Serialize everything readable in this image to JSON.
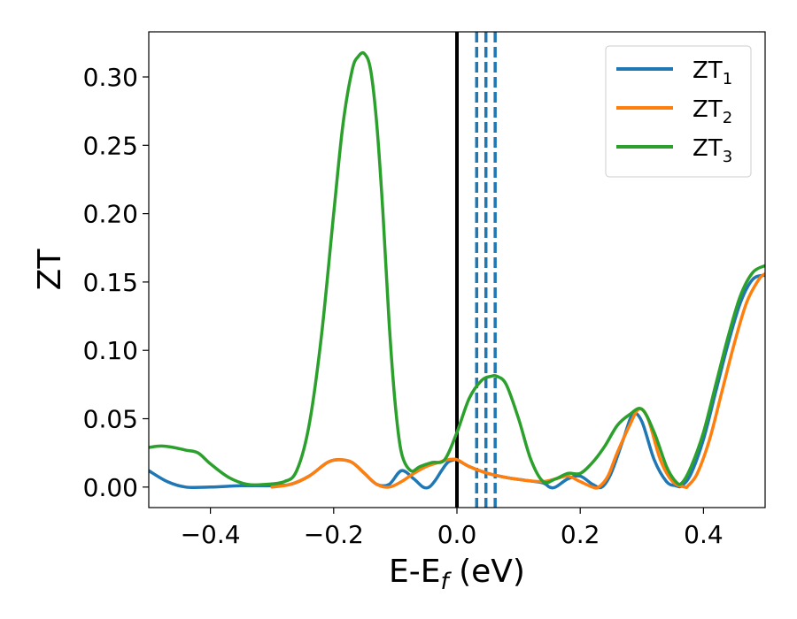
{
  "chart_data": {
    "type": "line",
    "xlabel": "E-E",
    "xlabel_sub": "f",
    "xlabel_unit": " (eV)",
    "ylabel": "ZT",
    "xlim": [
      -0.5,
      0.5
    ],
    "ylim": [
      -0.015,
      0.333
    ],
    "xticks": [
      -0.4,
      -0.2,
      0.0,
      0.2,
      0.4
    ],
    "xtick_labels": [
      "−0.4",
      "−0.2",
      "0.0",
      "0.2",
      "0.4"
    ],
    "yticks": [
      0.0,
      0.05,
      0.1,
      0.15,
      0.2,
      0.25,
      0.3
    ],
    "ytick_labels": [
      "0.00",
      "0.05",
      "0.10",
      "0.15",
      "0.20",
      "0.25",
      "0.30"
    ],
    "grid": false,
    "legend_position": "top-right",
    "vertical_lines": [
      {
        "x": 0.0,
        "style": "solid",
        "color": "#000000"
      },
      {
        "x": 0.032,
        "style": "dashed",
        "color": "#1f77b4"
      },
      {
        "x": 0.047,
        "style": "dashed",
        "color": "#1f77b4"
      },
      {
        "x": 0.062,
        "style": "dashed",
        "color": "#1f77b4"
      }
    ],
    "series": [
      {
        "name": "ZT",
        "name_sub": "1",
        "color": "#1f77b4",
        "x": [
          -0.5,
          -0.47,
          -0.44,
          -0.4,
          -0.35,
          -0.3,
          -0.27,
          -0.24,
          -0.21,
          -0.19,
          -0.17,
          -0.15,
          -0.13,
          -0.11,
          -0.09,
          -0.07,
          -0.055,
          -0.045,
          -0.035,
          -0.025,
          -0.015,
          -0.005,
          0.0,
          0.02,
          0.05,
          0.08,
          0.11,
          0.14,
          0.15,
          0.16,
          0.18,
          0.2,
          0.22,
          0.235,
          0.25,
          0.27,
          0.285,
          0.3,
          0.32,
          0.34,
          0.355,
          0.365,
          0.38,
          0.4,
          0.42,
          0.44,
          0.46,
          0.48,
          0.5
        ],
        "y": [
          0.012,
          0.004,
          0.0,
          0.0,
          0.001,
          0.001,
          0.002,
          0.008,
          0.018,
          0.02,
          0.018,
          0.01,
          0.002,
          0.002,
          0.012,
          0.006,
          0.0,
          0.0,
          0.005,
          0.012,
          0.018,
          0.02,
          0.02,
          0.015,
          0.01,
          0.007,
          0.005,
          0.003,
          0.0,
          0.0,
          0.006,
          0.008,
          0.002,
          0.0,
          0.01,
          0.035,
          0.053,
          0.048,
          0.02,
          0.004,
          0.001,
          0.001,
          0.01,
          0.035,
          0.07,
          0.105,
          0.135,
          0.152,
          0.155
        ]
      },
      {
        "name": "ZT",
        "name_sub": "2",
        "color": "#ff7f0e",
        "x": [
          -0.3,
          -0.27,
          -0.24,
          -0.21,
          -0.19,
          -0.17,
          -0.15,
          -0.13,
          -0.11,
          -0.09,
          -0.07,
          -0.05,
          -0.03,
          -0.015,
          0.0,
          0.02,
          0.05,
          0.08,
          0.11,
          0.14,
          0.16,
          0.18,
          0.2,
          0.22,
          0.23,
          0.245,
          0.26,
          0.28,
          0.295,
          0.31,
          0.33,
          0.35,
          0.37,
          0.375,
          0.39,
          0.41,
          0.43,
          0.45,
          0.47,
          0.49,
          0.5
        ],
        "y": [
          0.0,
          0.002,
          0.008,
          0.018,
          0.02,
          0.018,
          0.01,
          0.002,
          0.0,
          0.004,
          0.01,
          0.015,
          0.018,
          0.02,
          0.02,
          0.015,
          0.01,
          0.007,
          0.005,
          0.004,
          0.006,
          0.008,
          0.004,
          0.0,
          0.0,
          0.008,
          0.025,
          0.045,
          0.057,
          0.05,
          0.02,
          0.004,
          0.0,
          0.001,
          0.01,
          0.035,
          0.07,
          0.105,
          0.135,
          0.152,
          0.156
        ]
      },
      {
        "name": "ZT",
        "name_sub": "3",
        "color": "#2ca02c",
        "x": [
          -0.5,
          -0.48,
          -0.46,
          -0.44,
          -0.42,
          -0.4,
          -0.37,
          -0.34,
          -0.31,
          -0.28,
          -0.26,
          -0.24,
          -0.22,
          -0.2,
          -0.185,
          -0.17,
          -0.16,
          -0.15,
          -0.14,
          -0.13,
          -0.12,
          -0.11,
          -0.1,
          -0.09,
          -0.075,
          -0.06,
          -0.04,
          -0.02,
          0.0,
          0.02,
          0.04,
          0.055,
          0.065,
          0.08,
          0.1,
          0.12,
          0.14,
          0.16,
          0.18,
          0.2,
          0.22,
          0.24,
          0.26,
          0.28,
          0.3,
          0.32,
          0.34,
          0.355,
          0.365,
          0.38,
          0.4,
          0.42,
          0.44,
          0.46,
          0.48,
          0.5
        ],
        "y": [
          0.029,
          0.03,
          0.029,
          0.027,
          0.025,
          0.017,
          0.007,
          0.002,
          0.002,
          0.004,
          0.012,
          0.045,
          0.11,
          0.2,
          0.265,
          0.305,
          0.315,
          0.317,
          0.305,
          0.265,
          0.2,
          0.12,
          0.06,
          0.025,
          0.012,
          0.015,
          0.018,
          0.02,
          0.04,
          0.065,
          0.078,
          0.081,
          0.081,
          0.075,
          0.05,
          0.02,
          0.004,
          0.006,
          0.01,
          0.01,
          0.018,
          0.03,
          0.045,
          0.053,
          0.057,
          0.04,
          0.015,
          0.004,
          0.003,
          0.015,
          0.04,
          0.075,
          0.11,
          0.14,
          0.157,
          0.162
        ]
      }
    ]
  }
}
